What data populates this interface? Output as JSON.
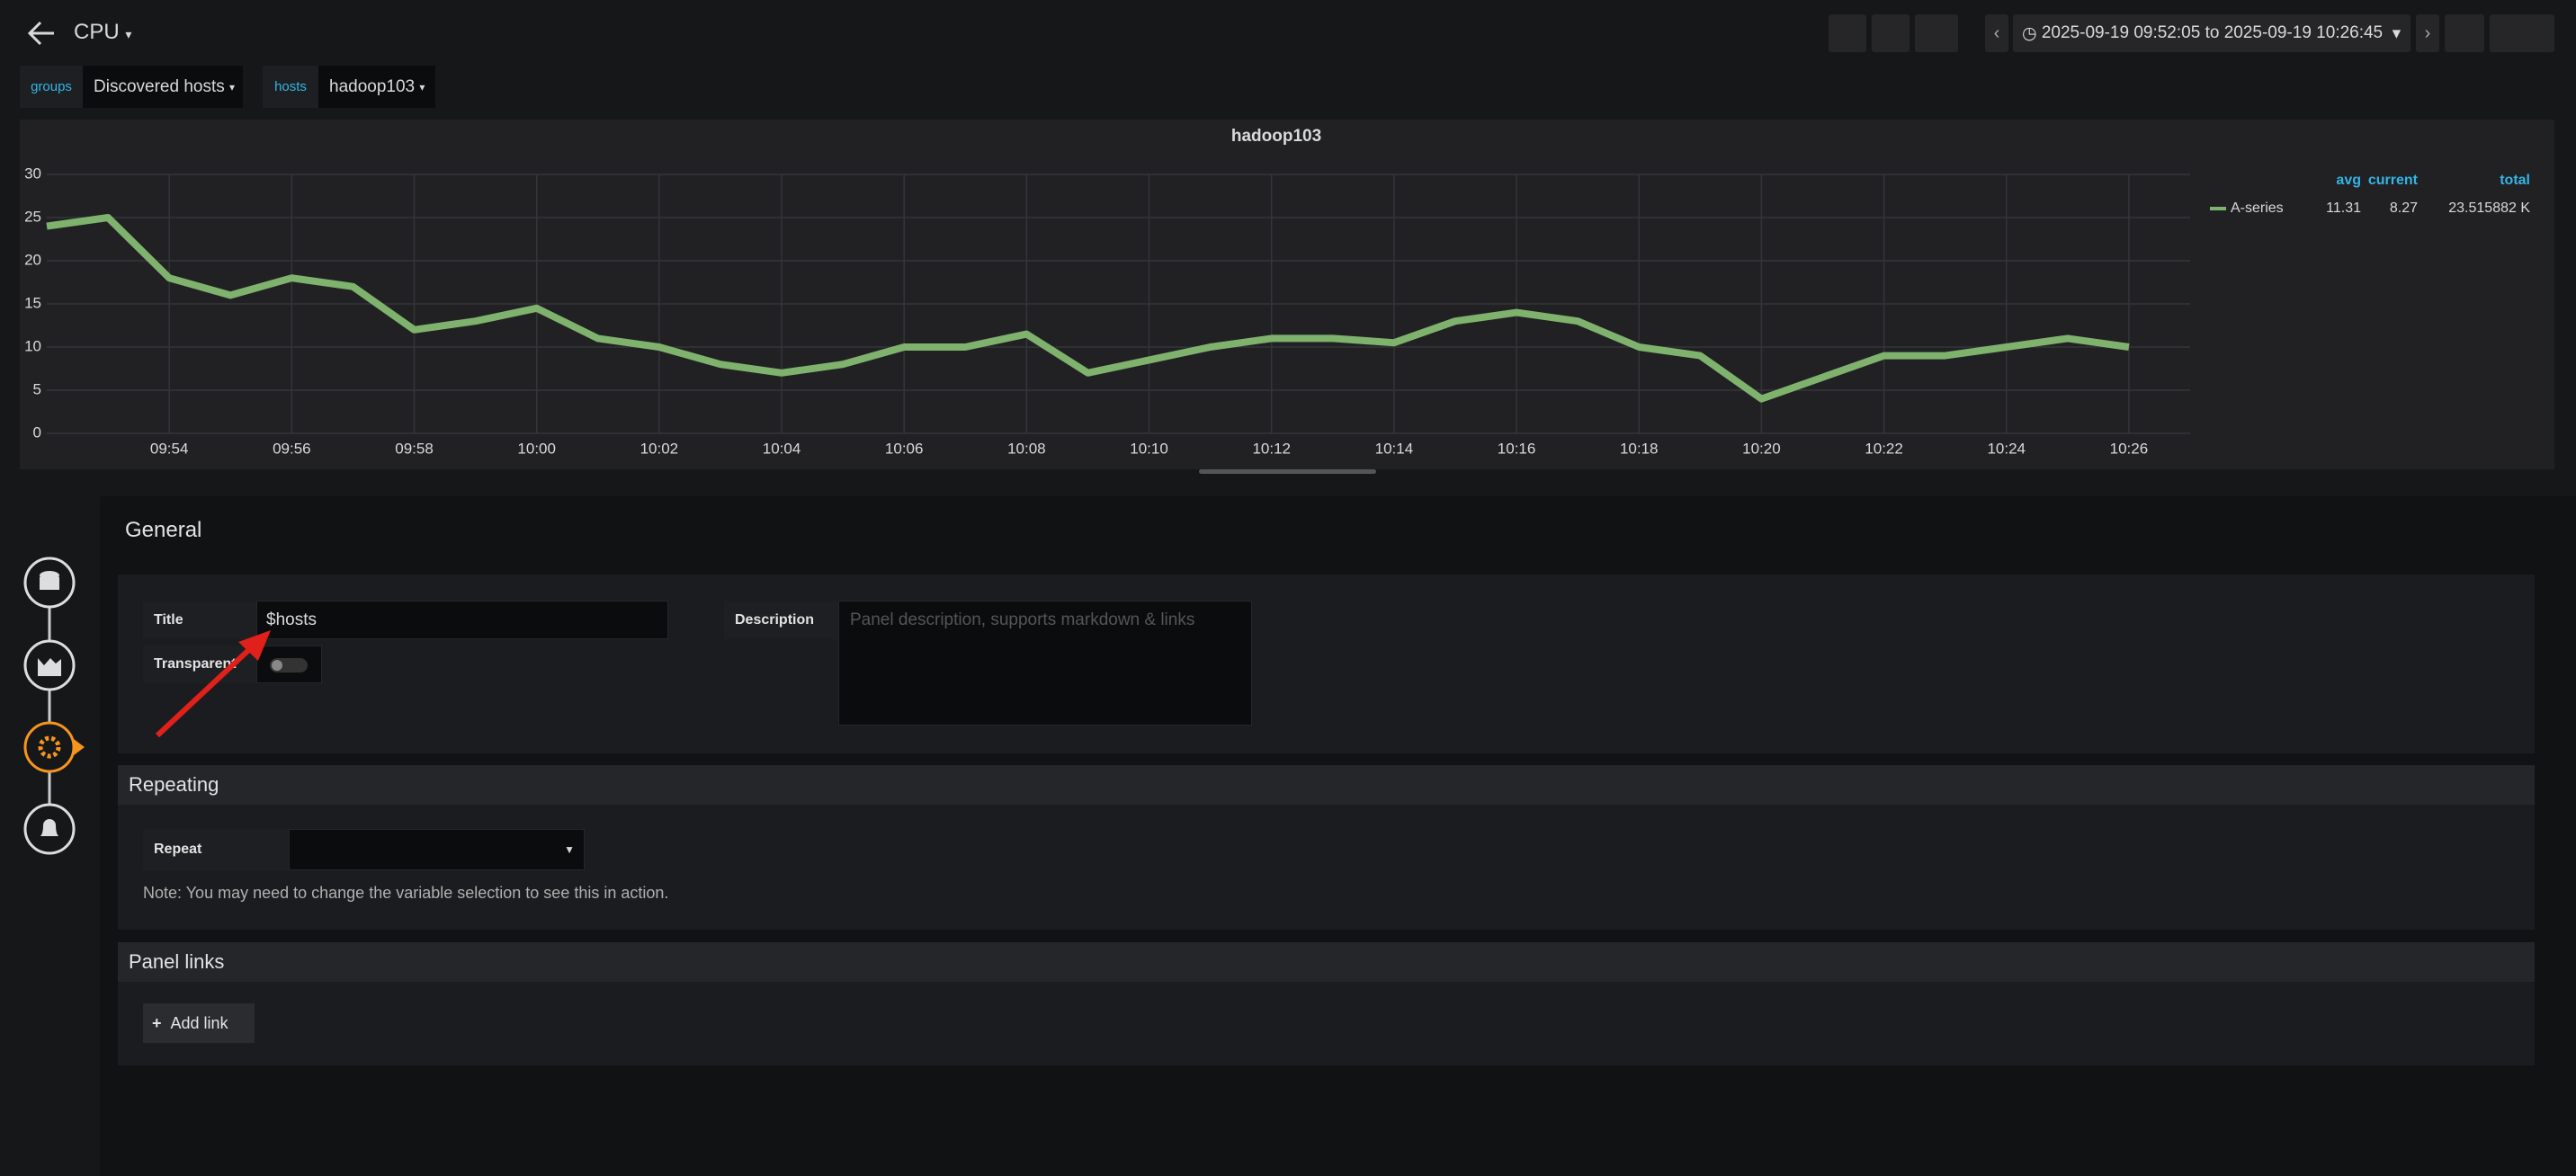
{
  "header": {
    "title": "CPU",
    "time_range": "2025-09-19 09:52:05 to 2025-09-19 10:26:45"
  },
  "variables": [
    {
      "label": "groups",
      "value": "Discovered hosts"
    },
    {
      "label": "hosts",
      "value": "hadoop103"
    }
  ],
  "chart_data": {
    "type": "line",
    "title": "hadoop103",
    "x": [
      "09:52",
      "09:53",
      "09:54",
      "09:55",
      "09:56",
      "09:57",
      "09:58",
      "09:59",
      "10:00",
      "10:01",
      "10:02",
      "10:03",
      "10:04",
      "10:05",
      "10:06",
      "10:07",
      "10:08",
      "10:09",
      "10:10",
      "10:11",
      "10:12",
      "10:13",
      "10:14",
      "10:15",
      "10:16",
      "10:17",
      "10:18",
      "10:19",
      "10:20",
      "10:21",
      "10:22",
      "10:23",
      "10:24",
      "10:25",
      "10:26"
    ],
    "series": [
      {
        "name": "A-series",
        "color": "#7eb26d",
        "values": [
          24,
          25,
          18,
          16,
          18,
          17,
          12,
          13,
          14.5,
          11,
          10,
          8,
          7,
          8,
          10,
          10,
          11.5,
          7,
          8.5,
          10,
          11,
          11,
          10.5,
          13,
          14,
          13,
          10,
          9,
          4,
          6.5,
          9,
          9,
          10,
          11,
          10
        ]
      }
    ],
    "xlim": [
      "09:52",
      "10:27"
    ],
    "xticks": [
      "09:54",
      "09:56",
      "09:58",
      "10:00",
      "10:02",
      "10:04",
      "10:06",
      "10:08",
      "10:10",
      "10:12",
      "10:14",
      "10:16",
      "10:18",
      "10:20",
      "10:22",
      "10:24",
      "10:26"
    ],
    "ylim": [
      0,
      30
    ],
    "yticks": [
      0,
      5,
      10,
      15,
      20,
      25,
      30
    ],
    "grid": true,
    "legend_stats": {
      "headers": [
        "avg",
        "current",
        "total"
      ],
      "values": [
        11.31,
        8.27,
        "23.515882 K"
      ]
    }
  },
  "editor": {
    "general": {
      "heading": "General",
      "title_label": "Title",
      "title_value": "$hosts",
      "transparent_label": "Transparent",
      "description_label": "Description",
      "description_placeholder": "Panel description, supports markdown & links"
    },
    "repeating": {
      "heading": "Repeating",
      "repeat_label": "Repeat",
      "note": "Note: You may need to change the variable selection to see this in action."
    },
    "panel_links": {
      "heading": "Panel links",
      "add_link": "Add link"
    }
  }
}
